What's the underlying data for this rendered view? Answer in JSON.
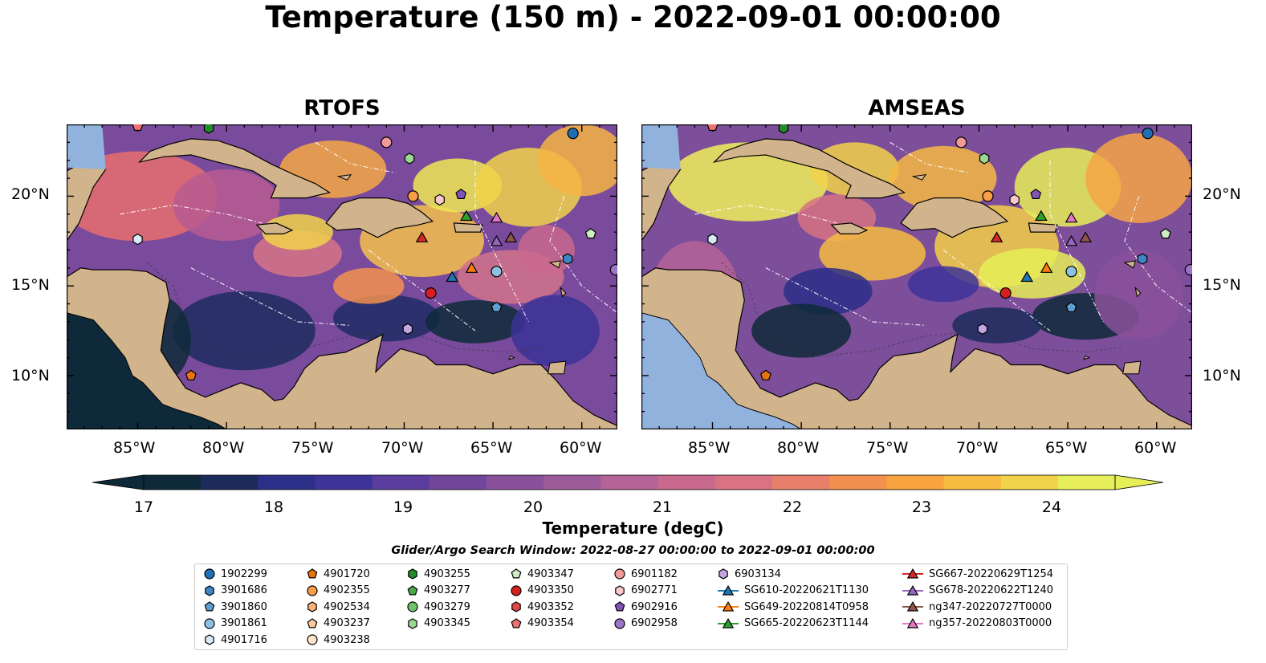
{
  "title": "Temperature (150 m) - 2022-09-01 00:00:00",
  "panels": [
    {
      "title": "RTOFS"
    },
    {
      "title": "AMSEAS"
    }
  ],
  "lat_labels": [
    "20°N",
    "15°N",
    "10°N"
  ],
  "lon_labels": [
    "85°W",
    "80°W",
    "75°W",
    "70°W",
    "65°W",
    "60°W"
  ],
  "map_extent": {
    "lon": [
      -89,
      -58
    ],
    "lat": [
      7,
      24
    ]
  },
  "colorbar": {
    "label": "Temperature (degC)",
    "ticks": [
      "17",
      "18",
      "19",
      "20",
      "21",
      "22",
      "23",
      "24"
    ],
    "range": [
      16.75,
      24.5
    ],
    "colors": [
      "#0e2a3a",
      "#1c2b5c",
      "#2c2f87",
      "#3d349a",
      "#5a3d9c",
      "#72479b",
      "#89519b",
      "#9e5b99",
      "#b46496",
      "#c8698d",
      "#d97383",
      "#e87f6b",
      "#f2904f",
      "#f7a440",
      "#f6bb41",
      "#f1d249",
      "#e6ef58"
    ]
  },
  "search_window": "Glider/Argo Search Window: 2022-08-27 00:00:00 to 2022-09-01 00:00:00",
  "legend": {
    "columns": [
      [
        {
          "label": "1902299",
          "marker": "circle",
          "color": "#1f6fb4"
        },
        {
          "label": "3901686",
          "marker": "hexagon",
          "color": "#3f86c4"
        },
        {
          "label": "3901860",
          "marker": "pentagon",
          "color": "#5e9fd2"
        },
        {
          "label": "3901861",
          "marker": "circle",
          "color": "#8dc1e3"
        },
        {
          "label": "4901716",
          "marker": "hexagon",
          "color": "#d7eaf6"
        }
      ],
      [
        {
          "label": "4901720",
          "marker": "pentagon",
          "color": "#e8740f"
        },
        {
          "label": "4902355",
          "marker": "circle",
          "color": "#f89d48"
        },
        {
          "label": "4902534",
          "marker": "hexagon",
          "color": "#fbb274"
        },
        {
          "label": "4903237",
          "marker": "pentagon",
          "color": "#fcc89c"
        },
        {
          "label": "4903238",
          "marker": "circle",
          "color": "#fde3c8"
        }
      ],
      [
        {
          "label": "4903255",
          "marker": "hexagon",
          "color": "#238b2a"
        },
        {
          "label": "4903277",
          "marker": "pentagon",
          "color": "#4aa84a"
        },
        {
          "label": "4903279",
          "marker": "circle",
          "color": "#6fc46b"
        },
        {
          "label": "4903345",
          "marker": "hexagon",
          "color": "#9ad893"
        }
      ],
      [
        {
          "label": "4903347",
          "marker": "pentagon",
          "color": "#cdeec3"
        },
        {
          "label": "4903350",
          "marker": "circle",
          "color": "#d62020"
        },
        {
          "label": "4903352",
          "marker": "hexagon",
          "color": "#e64545"
        },
        {
          "label": "4903354",
          "marker": "pentagon",
          "color": "#f07070"
        }
      ],
      [
        {
          "label": "6901182",
          "marker": "circle",
          "color": "#f29a9a"
        },
        {
          "label": "6902771",
          "marker": "hexagon",
          "color": "#f8c8cc"
        },
        {
          "label": "6902916",
          "marker": "pentagon",
          "color": "#8154b8"
        },
        {
          "label": "6902958",
          "marker": "circle",
          "color": "#9c74c8"
        }
      ],
      [
        {
          "label": "6903134",
          "marker": "hexagon",
          "color": "#c3a6e0"
        },
        {
          "label": "SG610-20220621T1130",
          "marker": "triangle-line",
          "color": "#1f77b4"
        },
        {
          "label": "SG649-20220814T0958",
          "marker": "triangle-line",
          "color": "#ff7f0e"
        },
        {
          "label": "SG665-20220623T1144",
          "marker": "triangle-line",
          "color": "#2ca02c"
        }
      ],
      [
        {
          "label": "SG667-20220629T1254",
          "marker": "triangle-line",
          "color": "#d62728"
        },
        {
          "label": "SG678-20220622T1240",
          "marker": "triangle-line",
          "color": "#9467bd"
        },
        {
          "label": "ng347-20220727T0000",
          "marker": "triangle-line",
          "color": "#8c564b"
        },
        {
          "label": "ng357-20220803T0000",
          "marker": "triangle-line",
          "color": "#e377c2"
        }
      ]
    ]
  },
  "observations": [
    {
      "id": "1902299",
      "lon": -60.5,
      "lat": 23.5,
      "marker": "circle",
      "color": "#1f6fb4"
    },
    {
      "id": "3901686",
      "lon": -60.8,
      "lat": 16.5,
      "marker": "hexagon",
      "color": "#3f86c4"
    },
    {
      "id": "3901860",
      "lon": -64.8,
      "lat": 13.8,
      "marker": "pentagon",
      "color": "#5e9fd2"
    },
    {
      "id": "3901861",
      "lon": -64.8,
      "lat": 15.8,
      "marker": "circle",
      "color": "#8dc1e3"
    },
    {
      "id": "4901716",
      "lon": -85.0,
      "lat": 17.6,
      "marker": "hexagon",
      "color": "#d7eaf6"
    },
    {
      "id": "4901720",
      "lon": -82.0,
      "lat": 10.0,
      "marker": "pentagon",
      "color": "#e8740f"
    },
    {
      "id": "4902355",
      "lon": -69.5,
      "lat": 20.0,
      "marker": "circle",
      "color": "#f89d48"
    },
    {
      "id": "4903255",
      "lon": -81.0,
      "lat": 23.8,
      "marker": "hexagon",
      "color": "#238b2a"
    },
    {
      "id": "4903345",
      "lon": -69.7,
      "lat": 22.1,
      "marker": "hexagon",
      "color": "#9ad893"
    },
    {
      "id": "4903347",
      "lon": -59.5,
      "lat": 17.9,
      "marker": "pentagon",
      "color": "#cdeec3"
    },
    {
      "id": "4903350",
      "lon": -68.5,
      "lat": 14.6,
      "marker": "circle",
      "color": "#d62020"
    },
    {
      "id": "6901182",
      "lon": -71.0,
      "lat": 23.0,
      "marker": "circle",
      "color": "#f29a9a"
    },
    {
      "id": "6902771",
      "lon": -68.0,
      "lat": 19.8,
      "marker": "hexagon",
      "color": "#f8c8cc"
    },
    {
      "id": "6902916",
      "lon": -66.8,
      "lat": 20.1,
      "marker": "pentagon",
      "color": "#8154b8"
    },
    {
      "id": "6902958",
      "lon": -58.1,
      "lat": 15.9,
      "marker": "circle",
      "color": "#9c74c8"
    },
    {
      "id": "6903134",
      "lon": -69.8,
      "lat": 12.6,
      "marker": "hexagon",
      "color": "#c3a6e0"
    },
    {
      "id": "4903354",
      "lon": -85.0,
      "lat": 23.9,
      "marker": "pentagon",
      "color": "#f07070"
    },
    {
      "id": "SG610-20220621T1130",
      "lon": -67.3,
      "lat": 15.5,
      "marker": "triangle",
      "color": "#1f77b4"
    },
    {
      "id": "SG649-20220814T0958",
      "lon": -66.2,
      "lat": 16.0,
      "marker": "triangle",
      "color": "#ff7f0e"
    },
    {
      "id": "SG665-20220623T1144",
      "lon": -66.5,
      "lat": 18.9,
      "marker": "triangle",
      "color": "#2ca02c"
    },
    {
      "id": "SG667-20220629T1254",
      "lon": -69.0,
      "lat": 17.7,
      "marker": "triangle",
      "color": "#d62728"
    },
    {
      "id": "SG678-20220622T1240",
      "lon": -64.8,
      "lat": 17.5,
      "marker": "triangle",
      "color": "#9467bd"
    },
    {
      "id": "ng347-20220727T0000",
      "lon": -64.0,
      "lat": 17.7,
      "marker": "triangle",
      "color": "#8c564b"
    },
    {
      "id": "ng357-20220803T0000",
      "lon": -64.8,
      "lat": 18.8,
      "marker": "triangle",
      "color": "#e377c2"
    }
  ]
}
